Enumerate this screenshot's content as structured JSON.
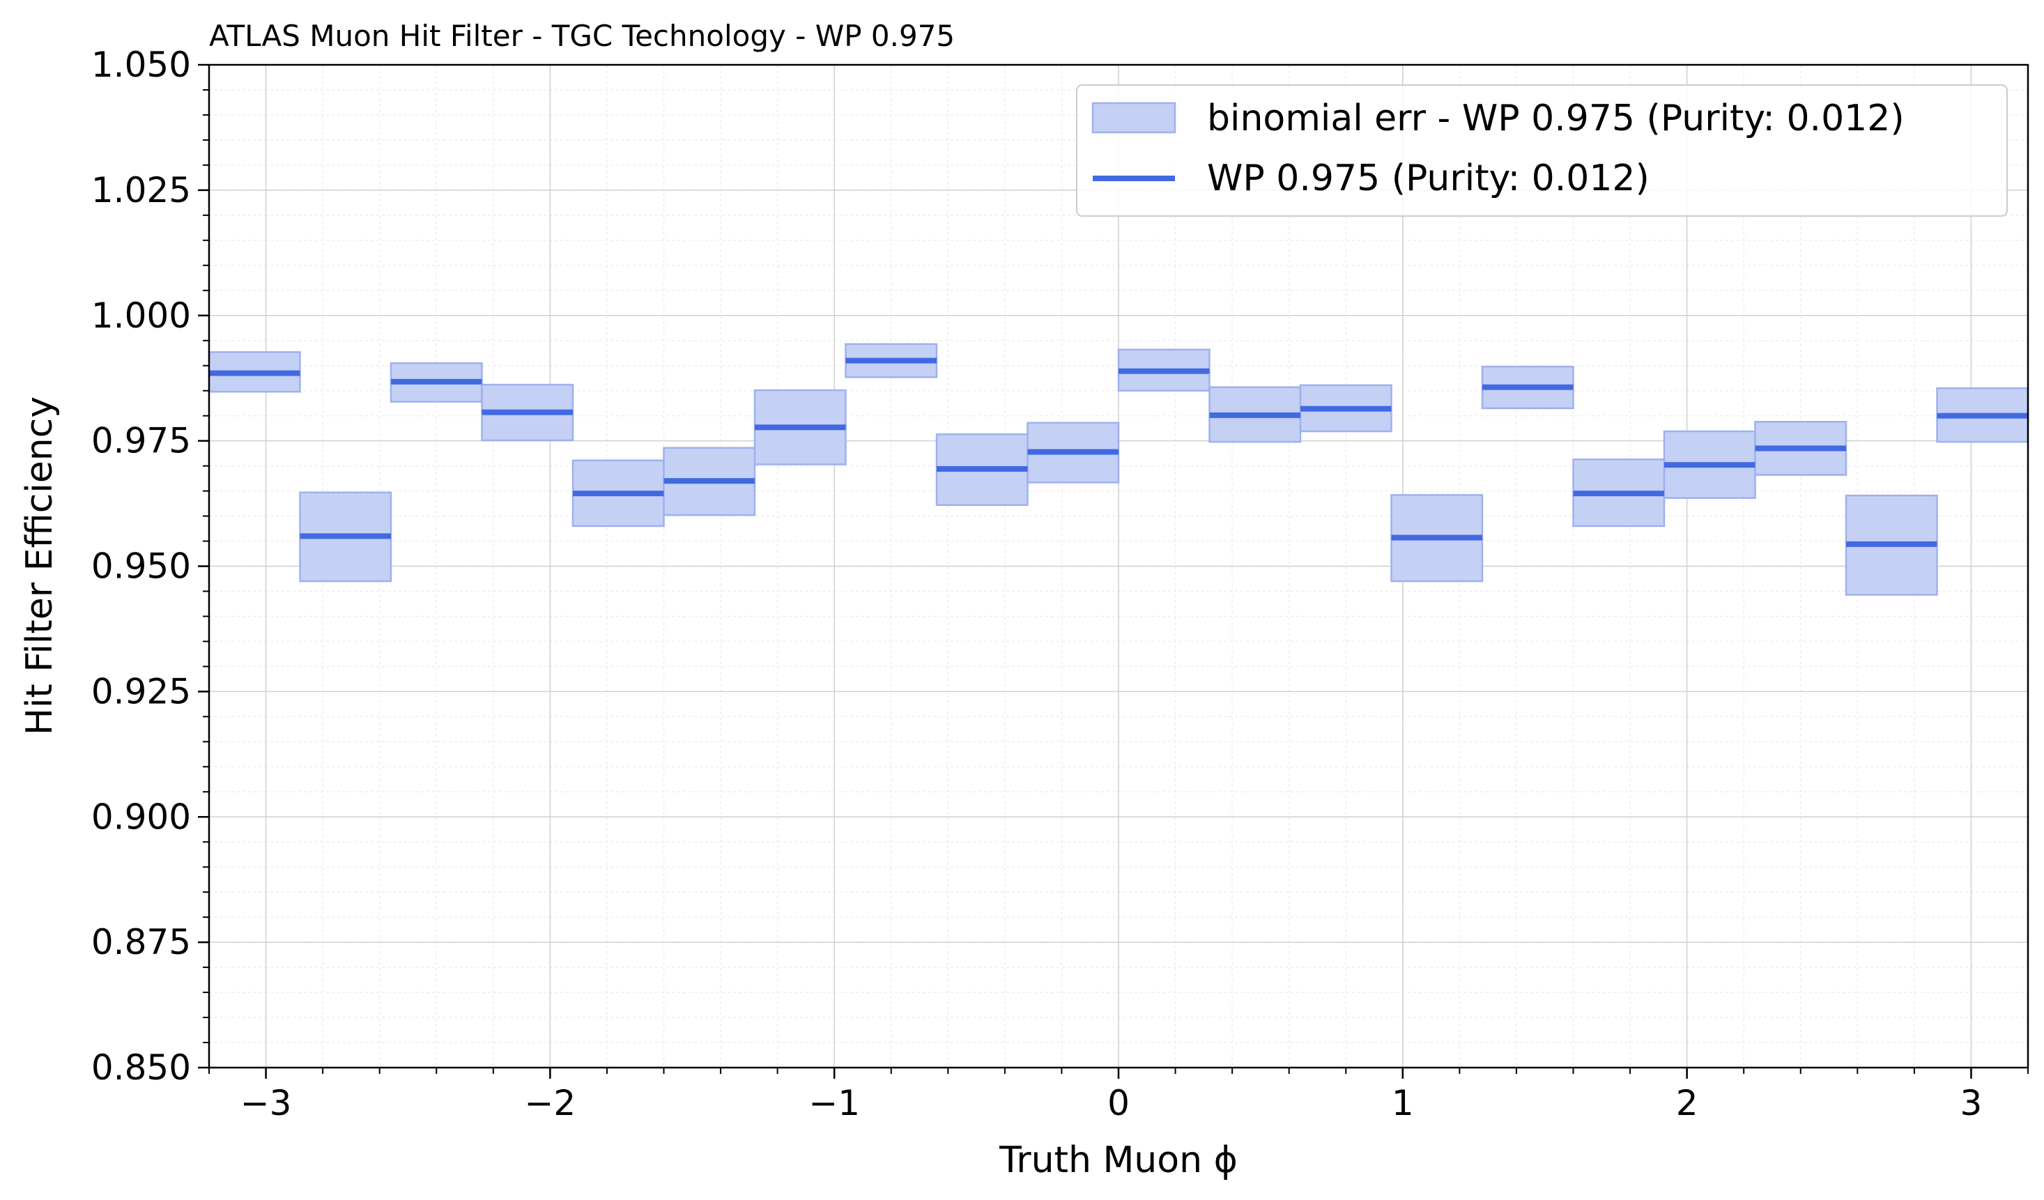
{
  "chart_data": {
    "type": "bar",
    "title": "ATLAS Muon Hit Filter - TGC Technology - WP 0.975",
    "xlabel": "Truth Muon ϕ",
    "ylabel": "Hit Filter Efficiency",
    "xlim": [
      -3.2,
      3.2
    ],
    "ylim": [
      0.85,
      1.05
    ],
    "x_ticks": [
      -3,
      -2,
      -1,
      0,
      1,
      2,
      3
    ],
    "x_tick_labels": [
      "−3",
      "−2",
      "−1",
      "0",
      "1",
      "2",
      "3"
    ],
    "y_ticks": [
      0.85,
      0.875,
      0.9,
      0.925,
      0.95,
      0.975,
      1.0,
      1.025,
      1.05
    ],
    "y_tick_labels": [
      "0.850",
      "0.875",
      "0.900",
      "0.925",
      "0.950",
      "0.975",
      "1.000",
      "1.025",
      "1.050"
    ],
    "grid": true,
    "legend_position": "top-right",
    "colors": {
      "line": "#4169e1",
      "band": "#c5d0f5",
      "band_edge": "#9eb1ee"
    },
    "series": [
      {
        "name": "binomial err - WP 0.975 (Purity: 0.012)",
        "kind": "band"
      },
      {
        "name": "WP 0.975 (Purity: 0.012)",
        "kind": "line"
      }
    ],
    "bins": [
      {
        "x0": -3.2,
        "x1": -2.88,
        "y": 0.9885,
        "lo": 0.9848,
        "hi": 0.9927
      },
      {
        "x0": -2.88,
        "x1": -2.56,
        "y": 0.956,
        "lo": 0.947,
        "hi": 0.9647
      },
      {
        "x0": -2.56,
        "x1": -2.24,
        "y": 0.9868,
        "lo": 0.9828,
        "hi": 0.9905
      },
      {
        "x0": -2.24,
        "x1": -1.92,
        "y": 0.9807,
        "lo": 0.9751,
        "hi": 0.9862
      },
      {
        "x0": -1.92,
        "x1": -1.6,
        "y": 0.9645,
        "lo": 0.958,
        "hi": 0.9711
      },
      {
        "x0": -1.6,
        "x1": -1.28,
        "y": 0.967,
        "lo": 0.9602,
        "hi": 0.9736
      },
      {
        "x0": -1.28,
        "x1": -0.96,
        "y": 0.9777,
        "lo": 0.9703,
        "hi": 0.9851
      },
      {
        "x0": -0.96,
        "x1": -0.64,
        "y": 0.991,
        "lo": 0.9877,
        "hi": 0.9943
      },
      {
        "x0": -0.64,
        "x1": -0.32,
        "y": 0.9694,
        "lo": 0.9622,
        "hi": 0.9763
      },
      {
        "x0": -0.32,
        "x1": 0.0,
        "y": 0.9728,
        "lo": 0.9667,
        "hi": 0.9786
      },
      {
        "x0": 0.0,
        "x1": 0.32,
        "y": 0.9889,
        "lo": 0.985,
        "hi": 0.9932
      },
      {
        "x0": 0.32,
        "x1": 0.64,
        "y": 0.9801,
        "lo": 0.9748,
        "hi": 0.9857
      },
      {
        "x0": 0.64,
        "x1": 0.96,
        "y": 0.9814,
        "lo": 0.9769,
        "hi": 0.9861
      },
      {
        "x0": 0.96,
        "x1": 1.28,
        "y": 0.9557,
        "lo": 0.947,
        "hi": 0.9642
      },
      {
        "x0": 1.28,
        "x1": 1.6,
        "y": 0.9857,
        "lo": 0.9815,
        "hi": 0.9898
      },
      {
        "x0": 1.6,
        "x1": 1.92,
        "y": 0.9645,
        "lo": 0.958,
        "hi": 0.9713
      },
      {
        "x0": 1.92,
        "x1": 2.24,
        "y": 0.9702,
        "lo": 0.9636,
        "hi": 0.9769
      },
      {
        "x0": 2.24,
        "x1": 2.56,
        "y": 0.9735,
        "lo": 0.9682,
        "hi": 0.9788
      },
      {
        "x0": 2.56,
        "x1": 2.88,
        "y": 0.9544,
        "lo": 0.9443,
        "hi": 0.9641
      },
      {
        "x0": 2.88,
        "x1": 3.2,
        "y": 0.98,
        "lo": 0.9748,
        "hi": 0.9855
      }
    ]
  }
}
